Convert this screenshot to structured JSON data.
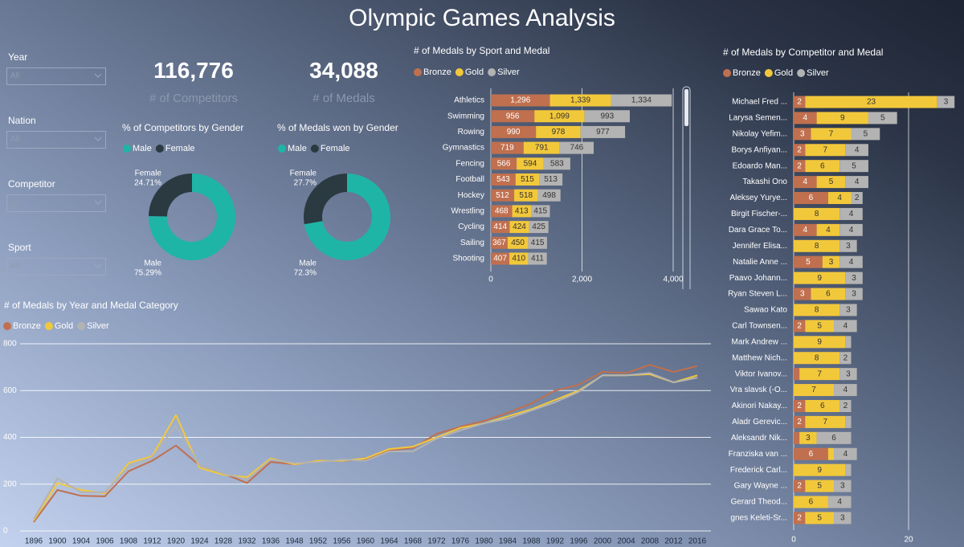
{
  "title": "Olympic Games Analysis",
  "filters": [
    {
      "label": "Year",
      "value": "All"
    },
    {
      "label": "Nation",
      "value": "All"
    },
    {
      "label": "Competitor",
      "value": "All"
    },
    {
      "label": "Sport",
      "value": "All"
    }
  ],
  "kpis": [
    {
      "value": "116,776",
      "label": "# of Competitors"
    },
    {
      "value": "34,088",
      "label": "# of Medals"
    }
  ],
  "chart_data": [
    {
      "type": "pie",
      "hole": true,
      "title": "% of Competitors by Gender",
      "categories": [
        "Male",
        "Female"
      ],
      "values": [
        75.29,
        24.71
      ],
      "value_labels": [
        "75.29%",
        "24.71%"
      ],
      "colors": [
        "#1fb5a6",
        "#2b3a40"
      ]
    },
    {
      "type": "pie",
      "hole": true,
      "title": "% of Medals won by Gender",
      "categories": [
        "Male",
        "Female"
      ],
      "values": [
        72.3,
        27.7
      ],
      "value_labels": [
        "72.3%",
        "27.7%"
      ],
      "colors": [
        "#1fb5a6",
        "#2b3a40"
      ]
    },
    {
      "type": "bar",
      "orientation": "horizontal",
      "stacked": true,
      "title": "# of Medals by Sport and Medal",
      "categories": [
        "Athletics",
        "Swimming",
        "Rowing",
        "Gymnastics",
        "Fencing",
        "Football",
        "Hockey",
        "Wrestling",
        "Cycling",
        "Sailing",
        "Shooting"
      ],
      "series": [
        {
          "name": "Bronze",
          "color": "#c0704f",
          "values": [
            1296,
            956,
            990,
            719,
            566,
            543,
            512,
            468,
            414,
            367,
            407
          ],
          "value_labels": [
            "1,296",
            "956",
            "990",
            "719",
            "566",
            "543",
            "512",
            "468",
            "414",
            "367",
            "407"
          ]
        },
        {
          "name": "Gold",
          "color": "#f2c83b",
          "values": [
            1339,
            1099,
            978,
            791,
            594,
            515,
            518,
            413,
            424,
            450,
            410
          ],
          "value_labels": [
            "1,339",
            "1,099",
            "978",
            "791",
            "594",
            "515",
            "518",
            "413",
            "424",
            "450",
            "410"
          ]
        },
        {
          "name": "Silver",
          "color": "#b3b3b3",
          "values": [
            1334,
            993,
            977,
            746,
            583,
            513,
            498,
            415,
            425,
            415,
            411
          ],
          "value_labels": [
            "1,334",
            "993",
            "977",
            "746",
            "583",
            "513",
            "498",
            "415",
            "425",
            "415",
            "411"
          ]
        }
      ],
      "xlim": [
        0,
        4000
      ],
      "xticks": [
        0,
        {
          "value": 2000,
          "label": "2,000"
        },
        {
          "value": 4000,
          "label": "4,000"
        }
      ],
      "grid": true
    },
    {
      "type": "bar",
      "orientation": "horizontal",
      "stacked": true,
      "title": "# of Medals by Competitor and Medal",
      "categories": [
        "Michael Fred ...",
        "Larysa Semen...",
        "Nikolay Yefim...",
        "Borys Anfiyan...",
        "Edoardo Man...",
        "Takashi Ono",
        "Aleksey Yurye...",
        "Birgit Fischer-...",
        "Dara Grace To...",
        "Jennifer Elisa...",
        "Natalie Anne ...",
        "Paavo Johann...",
        "Ryan Steven L...",
        "Sawao Kato",
        "Carl Townsen...",
        "Mark Andrew ...",
        "Matthew Nich...",
        "Viktor Ivanov...",
        "Vra slavsk (-O...",
        "Akinori Nakay...",
        "Aladr Gerevic...",
        "Aleksandr Nik...",
        "Franziska van ...",
        "Frederick Carl...",
        "Gary Wayne ...",
        "Gerard Theod...",
        "gnes Keleti-Sr..."
      ],
      "series": [
        {
          "name": "Bronze",
          "color": "#c0704f",
          "values": [
            2,
            4,
            3,
            2,
            2,
            4,
            6,
            null,
            4,
            null,
            5,
            null,
            3,
            null,
            2,
            null,
            null,
            1,
            null,
            2,
            2,
            1,
            6,
            null,
            2,
            null,
            2
          ]
        },
        {
          "name": "Gold",
          "color": "#f2c83b",
          "values": [
            23,
            9,
            7,
            7,
            6,
            5,
            4,
            8,
            4,
            8,
            3,
            9,
            6,
            8,
            5,
            9,
            8,
            7,
            7,
            6,
            7,
            3,
            1,
            9,
            5,
            6,
            5
          ]
        },
        {
          "name": "Silver",
          "color": "#b3b3b3",
          "values": [
            3,
            5,
            5,
            4,
            5,
            4,
            2,
            4,
            4,
            3,
            4,
            3,
            3,
            3,
            4,
            1,
            2,
            3,
            4,
            2,
            1,
            6,
            4,
            1,
            3,
            4,
            3
          ]
        }
      ],
      "xlim": [
        0,
        30
      ],
      "xticks": [
        0,
        20
      ],
      "grid": true
    },
    {
      "type": "line",
      "title": "# of Medals by Year and Medal Category",
      "categories": [
        "1896",
        "1900",
        "1904",
        "1906",
        "1908",
        "1912",
        "1920",
        "1924",
        "1928",
        "1932",
        "1936",
        "1948",
        "1952",
        "1956",
        "1960",
        "1964",
        "1968",
        "1972",
        "1976",
        "1980",
        "1984",
        "1988",
        "1992",
        "1996",
        "2000",
        "2004",
        "2008",
        "2012",
        "2016"
      ],
      "series": [
        {
          "name": "Bronze",
          "color": "#c0704f",
          "values": [
            38,
            175,
            150,
            148,
            255,
            300,
            365,
            280,
            245,
            205,
            295,
            285,
            300,
            300,
            305,
            345,
            355,
            415,
            445,
            470,
            505,
            545,
            600,
            625,
            680,
            675,
            710,
            680,
            705
          ]
        },
        {
          "name": "Gold",
          "color": "#f2c83b",
          "values": [
            45,
            205,
            175,
            160,
            290,
            320,
            495,
            270,
            240,
            230,
            310,
            285,
            300,
            300,
            310,
            350,
            360,
            400,
            440,
            460,
            490,
            520,
            560,
            600,
            665,
            665,
            670,
            635,
            665
          ]
        },
        {
          "name": "Silver",
          "color": "#b3b3b3",
          "values": [
            50,
            225,
            165,
            165,
            275,
            315,
            450,
            280,
            245,
            220,
            305,
            290,
            295,
            305,
            300,
            340,
            340,
            395,
            430,
            460,
            480,
            515,
            550,
            595,
            665,
            665,
            675,
            635,
            655
          ]
        }
      ],
      "ylim": [
        0,
        800
      ],
      "yticks": [
        0,
        200,
        400,
        600,
        800
      ],
      "grid": true
    }
  ]
}
